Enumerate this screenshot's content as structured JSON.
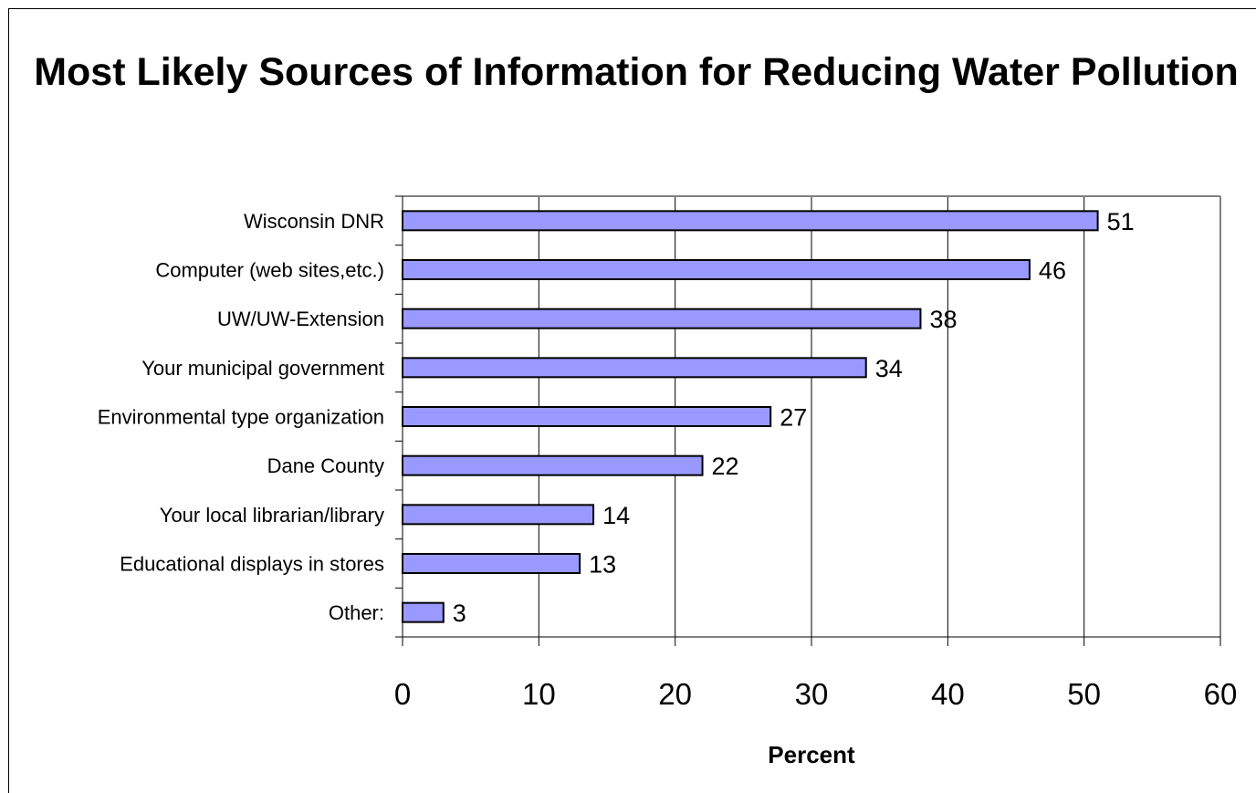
{
  "chart_data": {
    "type": "bar",
    "orientation": "horizontal",
    "title": "Most Likely Sources of Information for Reducing Water Pollution",
    "xlabel": "Percent",
    "ylabel": "",
    "xlim": [
      0,
      60
    ],
    "x_ticks": [
      0,
      10,
      20,
      30,
      40,
      50,
      60
    ],
    "grid": true,
    "legend": "none",
    "bar_color": "#9999ff",
    "bar_edge_color": "#000000",
    "categories": [
      "Wisconsin DNR",
      "Computer (web sites,etc.)",
      "UW/UW-Extension",
      "Your municipal government",
      "Environmental type organization",
      "Dane County",
      "Your local librarian/library",
      "Educational displays in stores",
      "Other:"
    ],
    "values": [
      51,
      46,
      38,
      34,
      27,
      22,
      14,
      13,
      3
    ],
    "data_labels": [
      "51",
      "46",
      "38",
      "34",
      "27",
      "22",
      "14",
      "13",
      "3"
    ]
  }
}
